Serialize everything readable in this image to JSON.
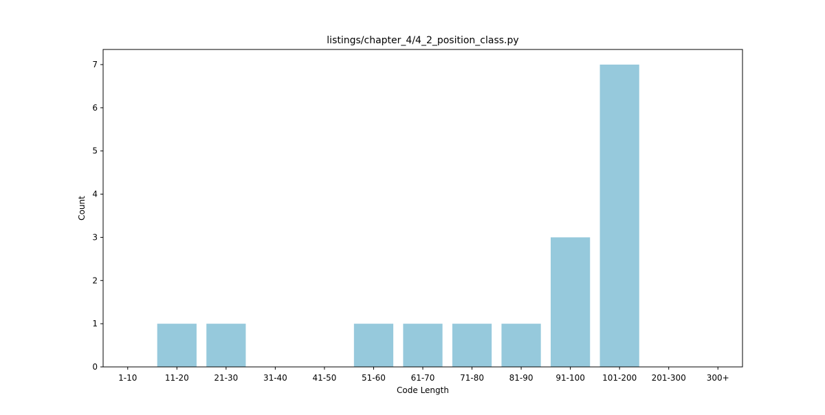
{
  "chart_data": {
    "type": "bar",
    "title": "listings/chapter_4/4_2_position_class.py",
    "xlabel": "Code Length",
    "ylabel": "Count",
    "categories": [
      "1-10",
      "11-20",
      "21-30",
      "31-40",
      "41-50",
      "51-60",
      "61-70",
      "71-80",
      "81-90",
      "91-100",
      "101-200",
      "201-300",
      "300+"
    ],
    "values": [
      0,
      1,
      1,
      0,
      0,
      1,
      1,
      1,
      1,
      3,
      7,
      0,
      0
    ],
    "ylim": [
      0,
      7.35
    ],
    "yticks": [
      0,
      1,
      2,
      3,
      4,
      5,
      6,
      7
    ],
    "bar_color": "#96c9dc",
    "grid": false,
    "legend": "none"
  }
}
